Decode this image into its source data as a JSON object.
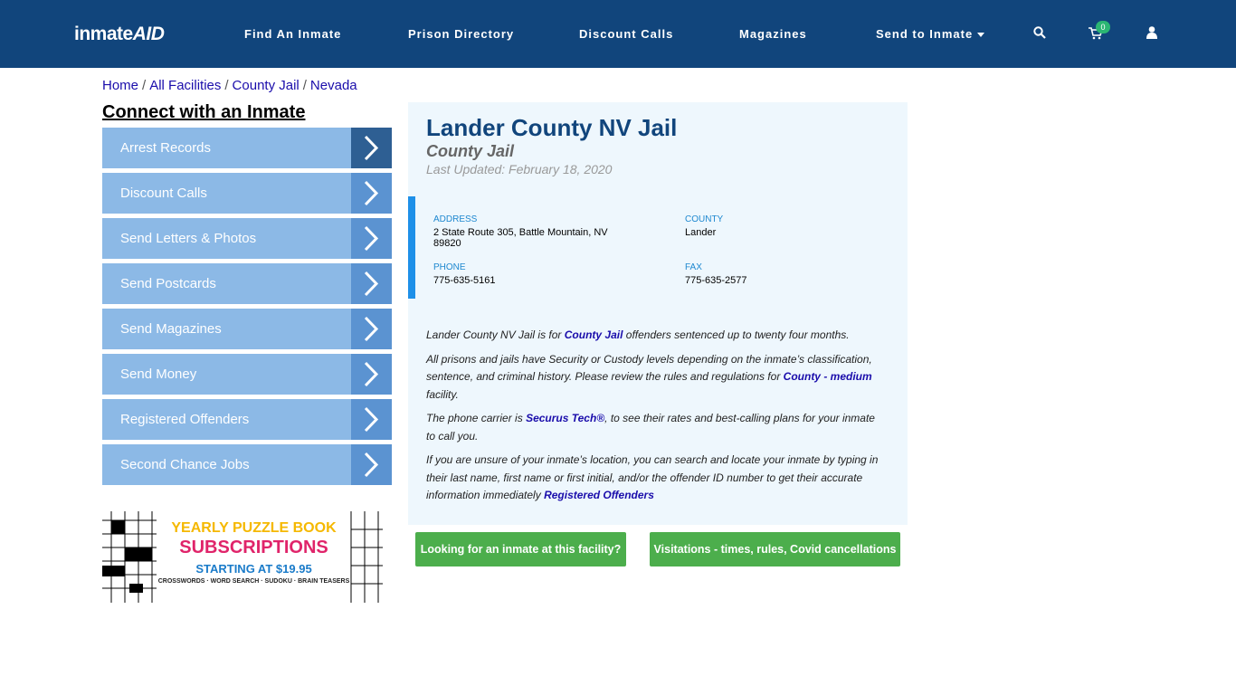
{
  "header": {
    "logo_left": "inmate",
    "logo_right": "AID",
    "nav": [
      "Find An Inmate",
      "Prison Directory",
      "Discount Calls",
      "Magazines",
      "Send to Inmate"
    ],
    "cart_count": "0"
  },
  "breadcrumb": {
    "items": [
      "Home",
      "All Facilities",
      "County Jail",
      "Nevada"
    ],
    "separator": "/"
  },
  "sidebar": {
    "title": "Connect with an Inmate",
    "links": [
      "Arrest Records",
      "Discount Calls",
      "Send Letters & Photos",
      "Send Postcards",
      "Send Magazines",
      "Send Money",
      "Registered Offenders",
      "Second Chance Jobs"
    ]
  },
  "ad": {
    "line1": "YEARLY PUZZLE BOOK",
    "line2": "SUBSCRIPTIONS",
    "line3": "STARTING AT $19.95",
    "line4": "CROSSWORDS · WORD SEARCH · SUDOKU · BRAIN TEASERS"
  },
  "facility": {
    "name": "Lander County NV Jail",
    "type": "County Jail",
    "updated": "Last Updated: February 18, 2020"
  },
  "info": [
    {
      "label": "ADDRESS",
      "value": "2 State Route 305, Battle Mountain, NV 89820"
    },
    {
      "label": "COUNTY",
      "value": "Lander"
    },
    {
      "label": "PHONE",
      "value": "775-635-5161"
    },
    {
      "label": "FAX",
      "value": "775-635-2577"
    }
  ],
  "paragraphs": [
    [
      {
        "text": "Lander County NV Jail is for "
      },
      {
        "link": "County Jail"
      },
      {
        "text": " offenders sentenced up to twenty four months."
      }
    ],
    [
      {
        "text": "All prisons and jails have Security or Custody levels depending on the inmate’s classification, sentence, and criminal history. Please review the rules and regulations for "
      },
      {
        "link": "County - medium"
      },
      {
        "text": " facility."
      }
    ],
    [
      {
        "text": "The phone carrier is "
      },
      {
        "link": "Securus Tech®"
      },
      {
        "text": ", to see their rates and best-calling plans for your inmate to call you."
      }
    ],
    [
      {
        "text": "If you are unsure of your inmate’s location, you can search and locate your inmate by typing in their last name, first name or first initial, and/or the offender ID number to get their accurate information immediately "
      },
      {
        "link": "Registered Offenders"
      }
    ]
  ],
  "buttons": [
    "Looking for an inmate at this facility?",
    "Visitations - times, rules, Covid cancellations"
  ]
}
